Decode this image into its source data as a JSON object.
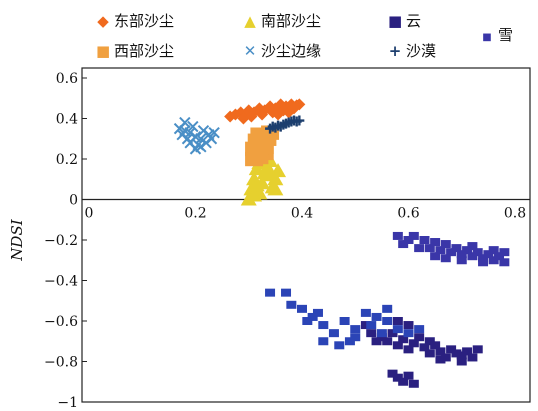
{
  "chart_data": {
    "type": "scatter",
    "xlim": [
      0,
      0.8
    ],
    "ylim": [
      -1,
      0.6
    ],
    "xticks": [
      "0",
      "0.2",
      "0.4",
      "0.6",
      "0.8"
    ],
    "yticks": [
      "0.6",
      "0.4",
      "0.2",
      "0",
      "-0.2",
      "-0.4",
      "-0.6",
      "-0.8",
      "-1"
    ],
    "ylabel": "NDSI",
    "xlabel": "",
    "grid": false,
    "legend_placement": "top",
    "series": [
      {
        "name": "东部沙尘",
        "marker": "diamond",
        "color": "#f06a1e",
        "points": [
          [
            0.265,
            0.41
          ],
          [
            0.275,
            0.42
          ],
          [
            0.285,
            0.43
          ],
          [
            0.295,
            0.42
          ],
          [
            0.3,
            0.44
          ],
          [
            0.31,
            0.43
          ],
          [
            0.32,
            0.45
          ],
          [
            0.33,
            0.44
          ],
          [
            0.34,
            0.46
          ],
          [
            0.35,
            0.45
          ],
          [
            0.36,
            0.47
          ],
          [
            0.37,
            0.46
          ],
          [
            0.38,
            0.47
          ],
          [
            0.39,
            0.465
          ],
          [
            0.395,
            0.47
          ],
          [
            0.305,
            0.41
          ],
          [
            0.325,
            0.42
          ],
          [
            0.345,
            0.43
          ],
          [
            0.365,
            0.44
          ],
          [
            0.385,
            0.45
          ],
          [
            0.29,
            0.4
          ],
          [
            0.355,
            0.42
          ],
          [
            0.375,
            0.43
          ]
        ]
      },
      {
        "name": "南部沙尘",
        "marker": "triangle",
        "color": "#e6d02e",
        "points": [
          [
            0.3,
            0.0
          ],
          [
            0.305,
            0.05
          ],
          [
            0.31,
            0.1
          ],
          [
            0.315,
            0.15
          ],
          [
            0.32,
            0.18
          ],
          [
            0.33,
            0.2
          ],
          [
            0.335,
            0.16
          ],
          [
            0.34,
            0.12
          ],
          [
            0.35,
            0.1
          ],
          [
            0.355,
            0.14
          ],
          [
            0.325,
            0.08
          ],
          [
            0.32,
            0.03
          ],
          [
            0.31,
            0.02
          ],
          [
            0.345,
            0.06
          ],
          [
            0.33,
            0.13
          ],
          [
            0.315,
            0.07
          ],
          [
            0.34,
            0.19
          ],
          [
            0.35,
            0.05
          ]
        ]
      },
      {
        "name": "沙尘边缘",
        "marker": "x",
        "color": "#4a8fc6",
        "points": [
          [
            0.17,
            0.35
          ],
          [
            0.18,
            0.38
          ],
          [
            0.185,
            0.3
          ],
          [
            0.19,
            0.33
          ],
          [
            0.195,
            0.36
          ],
          [
            0.2,
            0.31
          ],
          [
            0.205,
            0.27
          ],
          [
            0.21,
            0.3
          ],
          [
            0.215,
            0.34
          ],
          [
            0.22,
            0.28
          ],
          [
            0.225,
            0.32
          ],
          [
            0.23,
            0.3
          ],
          [
            0.2,
            0.25
          ],
          [
            0.19,
            0.28
          ],
          [
            0.175,
            0.32
          ],
          [
            0.21,
            0.26
          ],
          [
            0.235,
            0.33
          ],
          [
            0.18,
            0.34
          ]
        ]
      },
      {
        "name": "西部沙尘",
        "marker": "square",
        "color": "#f0a040",
        "points": [
          [
            0.31,
            0.2
          ],
          [
            0.31,
            0.25
          ],
          [
            0.315,
            0.29
          ],
          [
            0.32,
            0.32
          ],
          [
            0.325,
            0.27
          ],
          [
            0.33,
            0.23
          ],
          [
            0.335,
            0.3
          ],
          [
            0.34,
            0.33
          ],
          [
            0.32,
            0.21
          ],
          [
            0.33,
            0.26
          ]
        ]
      },
      {
        "name": "沙漠",
        "marker": "plus",
        "color": "#1d3f6e",
        "points": [
          [
            0.34,
            0.35
          ],
          [
            0.345,
            0.36
          ],
          [
            0.35,
            0.355
          ],
          [
            0.355,
            0.365
          ],
          [
            0.36,
            0.36
          ],
          [
            0.365,
            0.37
          ],
          [
            0.37,
            0.375
          ],
          [
            0.375,
            0.38
          ],
          [
            0.38,
            0.385
          ],
          [
            0.385,
            0.39
          ],
          [
            0.39,
            0.385
          ],
          [
            0.395,
            0.39
          ]
        ]
      },
      {
        "name": "云",
        "marker": "square",
        "color": "#2a2080",
        "points": [
          [
            0.52,
            -0.62
          ],
          [
            0.53,
            -0.66
          ],
          [
            0.54,
            -0.7
          ],
          [
            0.55,
            -0.68
          ],
          [
            0.56,
            -0.7
          ],
          [
            0.57,
            -0.66
          ],
          [
            0.58,
            -0.72
          ],
          [
            0.59,
            -0.69
          ],
          [
            0.6,
            -0.74
          ],
          [
            0.61,
            -0.71
          ],
          [
            0.62,
            -0.68
          ],
          [
            0.63,
            -0.73
          ],
          [
            0.64,
            -0.76
          ],
          [
            0.65,
            -0.72
          ],
          [
            0.66,
            -0.75
          ],
          [
            0.67,
            -0.78
          ],
          [
            0.68,
            -0.74
          ],
          [
            0.69,
            -0.76
          ],
          [
            0.7,
            -0.77
          ],
          [
            0.71,
            -0.75
          ],
          [
            0.72,
            -0.78
          ],
          [
            0.73,
            -0.74
          ],
          [
            0.57,
            -0.86
          ],
          [
            0.58,
            -0.88
          ],
          [
            0.59,
            -0.9
          ],
          [
            0.6,
            -0.87
          ],
          [
            0.61,
            -0.91
          ],
          [
            0.58,
            -0.6
          ],
          [
            0.6,
            -0.62
          ],
          [
            0.64,
            -0.7
          ],
          [
            0.66,
            -0.79
          ],
          [
            0.7,
            -0.8
          ]
        ]
      },
      {
        "name": "雪",
        "marker": "square",
        "color": "#3a36a8",
        "points": [
          [
            0.58,
            -0.18
          ],
          [
            0.59,
            -0.22
          ],
          [
            0.61,
            -0.18
          ],
          [
            0.63,
            -0.2
          ],
          [
            0.64,
            -0.24
          ],
          [
            0.65,
            -0.21
          ],
          [
            0.66,
            -0.25
          ],
          [
            0.67,
            -0.22
          ],
          [
            0.68,
            -0.26
          ],
          [
            0.69,
            -0.24
          ],
          [
            0.7,
            -0.27
          ],
          [
            0.71,
            -0.25
          ],
          [
            0.72,
            -0.28
          ],
          [
            0.73,
            -0.26
          ],
          [
            0.74,
            -0.29
          ],
          [
            0.75,
            -0.27
          ],
          [
            0.76,
            -0.3
          ],
          [
            0.77,
            -0.28
          ],
          [
            0.78,
            -0.31
          ],
          [
            0.65,
            -0.28
          ],
          [
            0.7,
            -0.3
          ],
          [
            0.74,
            -0.31
          ],
          [
            0.62,
            -0.24
          ],
          [
            0.67,
            -0.29
          ],
          [
            0.78,
            -0.26
          ],
          [
            0.6,
            -0.2
          ],
          [
            0.72,
            -0.23
          ],
          [
            0.76,
            -0.25
          ]
        ]
      },
      {
        "name": "云",
        "marker": "square",
        "color": "#2b44b6",
        "points": [
          [
            0.34,
            -0.46
          ],
          [
            0.37,
            -0.46
          ],
          [
            0.38,
            -0.52
          ],
          [
            0.4,
            -0.54
          ],
          [
            0.42,
            -0.58
          ],
          [
            0.44,
            -0.62
          ],
          [
            0.46,
            -0.66
          ],
          [
            0.48,
            -0.6
          ],
          [
            0.5,
            -0.64
          ],
          [
            0.52,
            -0.56
          ],
          [
            0.54,
            -0.58
          ],
          [
            0.56,
            -0.6
          ],
          [
            0.58,
            -0.64
          ],
          [
            0.6,
            -0.66
          ],
          [
            0.62,
            -0.64
          ],
          [
            0.44,
            -0.7
          ],
          [
            0.47,
            -0.72
          ],
          [
            0.5,
            -0.68
          ],
          [
            0.53,
            -0.62
          ],
          [
            0.55,
            -0.66
          ],
          [
            0.43,
            -0.56
          ],
          [
            0.49,
            -0.7
          ],
          [
            0.41,
            -0.6
          ],
          [
            0.56,
            -0.54
          ]
        ]
      }
    ]
  },
  "legend": [
    {
      "label": "东部沙尘",
      "marker": "diamond",
      "color": "#f06a1e"
    },
    {
      "label": "南部沙尘",
      "marker": "triangle",
      "color": "#e6d02e"
    },
    {
      "label": "云",
      "marker": "square",
      "color": "#2a2080"
    },
    {
      "label": "雪",
      "marker": "square",
      "color": "#3a36a8"
    },
    {
      "label": "西部沙尘",
      "marker": "square",
      "color": "#f0a040"
    },
    {
      "label": "沙尘边缘",
      "marker": "x",
      "color": "#4a8fc6"
    },
    {
      "label": "沙漠",
      "marker": "plus",
      "color": "#1d3f6e"
    }
  ]
}
